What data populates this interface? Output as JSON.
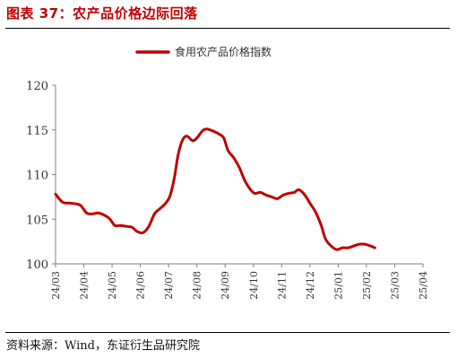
{
  "figure": {
    "title": "图表 37：农产品价格边际回落",
    "source": "资料来源：Wind，东证衍生品研究院"
  },
  "colors": {
    "title": "#c00000",
    "series": "#c00000",
    "axis": "#7f7f7f"
  },
  "chart_data": {
    "type": "line",
    "title": "",
    "xlabel": "",
    "ylabel": "",
    "legend_position": "top-center",
    "grid": false,
    "ylim": [
      100,
      120
    ],
    "yticks": [
      100,
      105,
      110,
      115,
      120
    ],
    "xticks": [
      "24/03",
      "24/04",
      "24/05",
      "24/06",
      "24/07",
      "24/08",
      "24/09",
      "24/10",
      "24/11",
      "24/12",
      "25/01",
      "25/02",
      "25/03",
      "25/04"
    ],
    "series": [
      {
        "name": "食用农产品价格指数",
        "color": "#c00000",
        "points": [
          [
            0.0,
            107.8
          ],
          [
            0.25,
            106.9
          ],
          [
            0.5,
            106.8
          ],
          [
            0.75,
            106.7
          ],
          [
            0.9,
            106.5
          ],
          [
            1.1,
            105.7
          ],
          [
            1.3,
            105.6
          ],
          [
            1.5,
            105.7
          ],
          [
            1.7,
            105.5
          ],
          [
            1.9,
            105.1
          ],
          [
            2.1,
            104.3
          ],
          [
            2.3,
            104.3
          ],
          [
            2.5,
            104.2
          ],
          [
            2.7,
            104.1
          ],
          [
            2.9,
            103.6
          ],
          [
            3.1,
            103.5
          ],
          [
            3.3,
            104.2
          ],
          [
            3.5,
            105.6
          ],
          [
            3.7,
            106.2
          ],
          [
            3.9,
            106.8
          ],
          [
            4.05,
            107.6
          ],
          [
            4.2,
            109.6
          ],
          [
            4.35,
            112.4
          ],
          [
            4.5,
            113.9
          ],
          [
            4.65,
            114.3
          ],
          [
            4.85,
            113.8
          ],
          [
            5.0,
            114.1
          ],
          [
            5.2,
            114.9
          ],
          [
            5.35,
            115.1
          ],
          [
            5.55,
            114.9
          ],
          [
            5.75,
            114.6
          ],
          [
            5.95,
            114.1
          ],
          [
            6.1,
            112.7
          ],
          [
            6.3,
            111.9
          ],
          [
            6.5,
            110.8
          ],
          [
            6.7,
            109.3
          ],
          [
            6.9,
            108.3
          ],
          [
            7.05,
            107.9
          ],
          [
            7.25,
            108.0
          ],
          [
            7.45,
            107.7
          ],
          [
            7.65,
            107.5
          ],
          [
            7.85,
            107.3
          ],
          [
            8.05,
            107.7
          ],
          [
            8.25,
            107.9
          ],
          [
            8.45,
            108.0
          ],
          [
            8.6,
            108.3
          ],
          [
            8.8,
            107.8
          ],
          [
            9.0,
            106.8
          ],
          [
            9.2,
            105.8
          ],
          [
            9.4,
            104.3
          ],
          [
            9.55,
            102.8
          ],
          [
            9.75,
            102.0
          ],
          [
            9.95,
            101.6
          ],
          [
            10.15,
            101.8
          ],
          [
            10.35,
            101.8
          ],
          [
            10.55,
            102.0
          ],
          [
            10.75,
            102.2
          ],
          [
            10.95,
            102.2
          ],
          [
            11.15,
            102.0
          ],
          [
            11.3,
            101.8
          ]
        ]
      }
    ]
  }
}
